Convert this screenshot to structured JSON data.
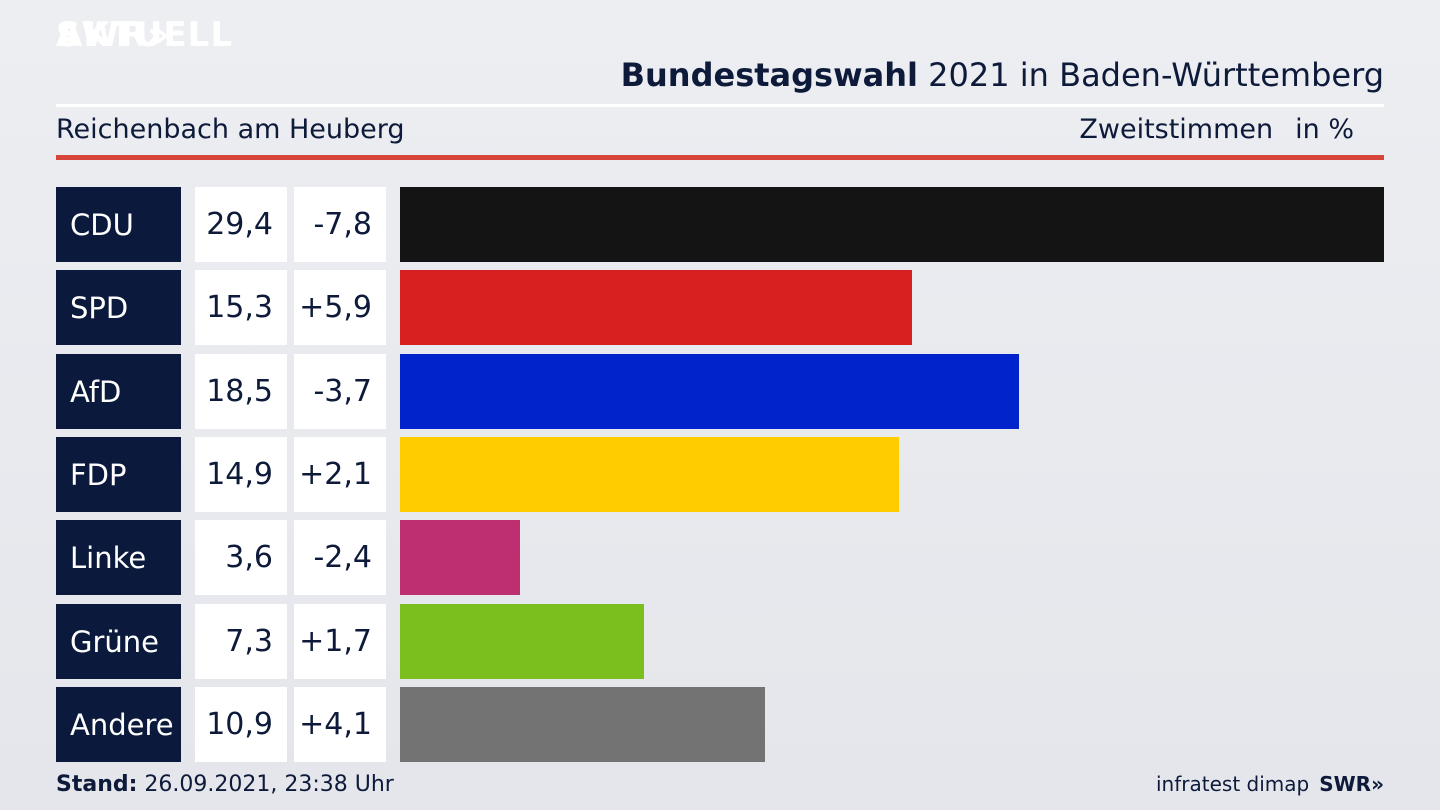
{
  "brand": {
    "logo_line1": "SWR",
    "logo_chevrons": "»",
    "logo_line2": "AKTUELL"
  },
  "header": {
    "title_bold": "Bundestagswahl",
    "title_rest": " 2021 in Baden-Württemberg",
    "subtitle": "Reichenbach am Heuberg",
    "metric_label": "Zweitstimmen",
    "unit_label": "in %"
  },
  "colors": {
    "navy": "#0b1a3c",
    "accent_red": "#d6443a"
  },
  "chart_data": {
    "type": "bar",
    "orientation": "horizontal",
    "categories": [
      "CDU",
      "SPD",
      "AfD",
      "FDP",
      "Linke",
      "Grüne",
      "Andere"
    ],
    "values": [
      29.4,
      15.3,
      18.5,
      14.9,
      3.6,
      7.3,
      10.9
    ],
    "value_labels": [
      "29,4",
      "15,3",
      "18,5",
      "14,9",
      "3,6",
      "7,3",
      "10,9"
    ],
    "changes": [
      -7.8,
      5.9,
      -3.7,
      2.1,
      -2.4,
      1.7,
      4.1
    ],
    "change_labels": [
      "-7,8",
      "+5,9",
      "-3,7",
      "+2,1",
      "-2,4",
      "+1,7",
      "+4,1"
    ],
    "bar_colors": [
      "#141414",
      "#d82020",
      "#0023cc",
      "#ffcc00",
      "#be2f72",
      "#7bbf1e",
      "#737373"
    ],
    "xlim": [
      0,
      29.4
    ]
  },
  "footer": {
    "stand_label": "Stand:",
    "stand_value": " 26.09.2021, 23:38 Uhr",
    "source": "infratest dimap",
    "source_logo": "SWR»"
  }
}
